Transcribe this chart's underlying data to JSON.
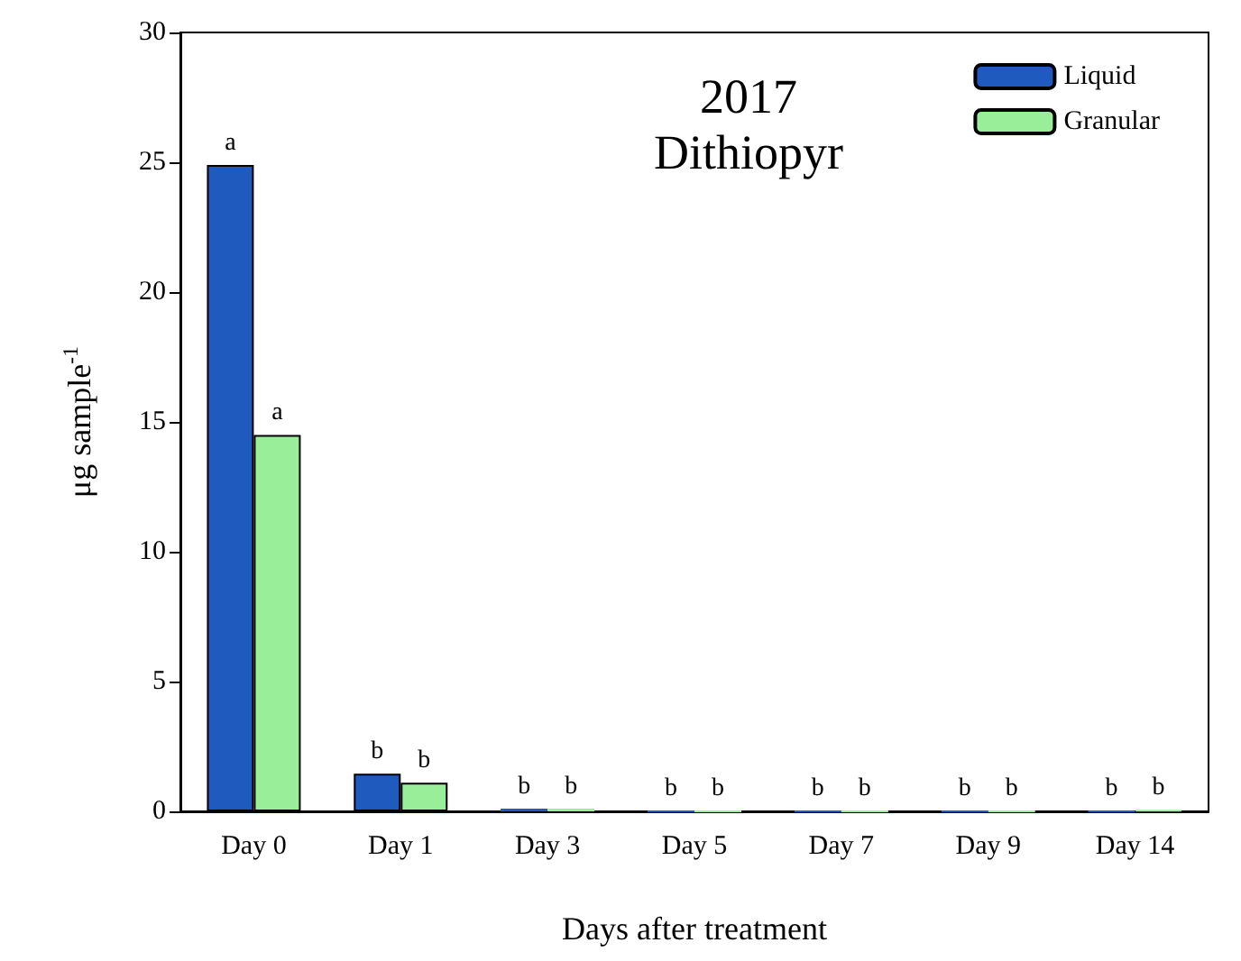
{
  "chart_data": {
    "type": "bar",
    "title": "2017",
    "subtitle": "Dithiopyr",
    "xlabel": "Days after treatment",
    "ylabel": "μg sample$^{-1}$",
    "categories": [
      "Day 0",
      "Day 1",
      "Day 3",
      "Day 5",
      "Day 7",
      "Day 9",
      "Day 14"
    ],
    "series": [
      {
        "name": "Liquid",
        "color": "#1f5bbf",
        "values": [
          24.9,
          1.45,
          0.1,
          0,
          0,
          0,
          0
        ],
        "value_labels": [
          "a",
          "b",
          "b",
          "b",
          "b",
          "b",
          "b"
        ]
      },
      {
        "name": "Granular",
        "color": "#99ee99",
        "values": [
          14.5,
          1.1,
          0.1,
          0,
          0,
          0,
          0.05
        ],
        "value_labels": [
          "a",
          "b",
          "b",
          "b",
          "b",
          "b",
          "b"
        ]
      }
    ],
    "ylim": [
      0,
      30
    ],
    "yticks": [
      0,
      5,
      10,
      15,
      20,
      25,
      30
    ],
    "grid": false,
    "legend": "top right"
  }
}
